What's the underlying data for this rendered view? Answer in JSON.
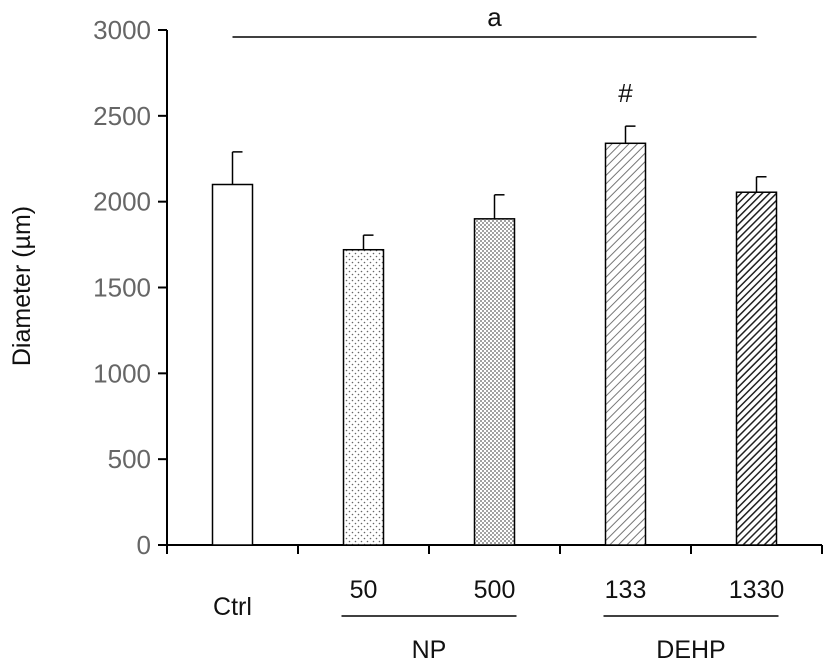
{
  "chart_data": {
    "type": "bar",
    "title": "",
    "xlabel": "",
    "ylabel": "Diameter (µm)",
    "ylim": [
      0,
      3000
    ],
    "yticks": [
      0,
      500,
      1000,
      1500,
      2000,
      2500,
      3000
    ],
    "grid": false,
    "legend": "none",
    "categories": [
      "Ctrl",
      "50",
      "500",
      "133",
      "1330"
    ],
    "values": [
      2100,
      1720,
      1900,
      2340,
      2055
    ],
    "errors": [
      190,
      85,
      140,
      100,
      90
    ],
    "bar_fills": [
      "white",
      "sparse-dots",
      "dense-dots",
      "diagonal-hatch-light",
      "diagonal-hatch-dark"
    ],
    "groups": [
      {
        "label": "NP",
        "categories": [
          "50",
          "500"
        ]
      },
      {
        "label": "DEHP",
        "categories": [
          "133",
          "1330"
        ]
      }
    ],
    "annotations": {
      "top_line_label": "a",
      "top_line_span": [
        "Ctrl",
        "1330"
      ],
      "marker": {
        "text": "#",
        "category": "133"
      }
    }
  }
}
